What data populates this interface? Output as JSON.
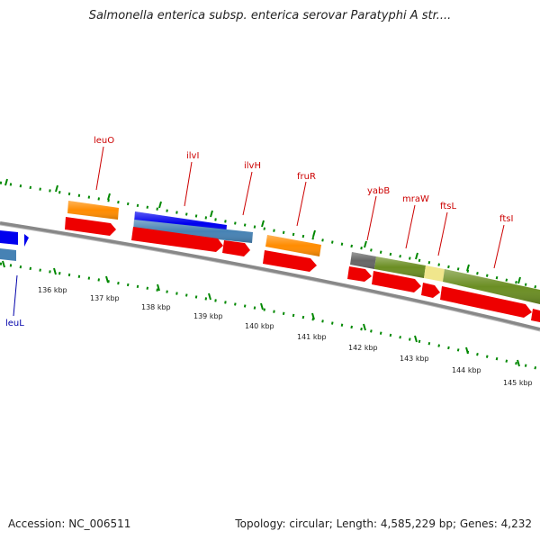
{
  "header": {
    "title": "Salmonella enterica subsp. enterica serovar Paratyphi A str...."
  },
  "footer": {
    "accession": "Accession: NC_006511",
    "summary": "Topology: circular; Length: 4,585,229 bp; Genes: 4,232"
  },
  "ruler": {
    "labels": [
      "136 kbp",
      "137 kbp",
      "138 kbp",
      "139 kbp",
      "140 kbp",
      "141 kbp",
      "142 kbp",
      "143 kbp",
      "144 kbp",
      "145 kbp"
    ]
  },
  "genes": {
    "labels": [
      "leuO",
      "ilvI",
      "ilvH",
      "fruR",
      "yabB",
      "mraW",
      "ftsL",
      "ftsI",
      "leuL"
    ]
  },
  "colors": {
    "cds": "#ee0000",
    "orange_feature": "#ff8c00",
    "blue_feature": "#0000ee",
    "steelblue_feature": "#4682b4",
    "olive_feature": "#6b8e23",
    "gray_feature": "#666666",
    "khaki_feature": "#f0e68c",
    "label_red": "#cc0000",
    "label_blue": "#0000aa",
    "tick_green": "#008800",
    "backbone": "#888888"
  }
}
